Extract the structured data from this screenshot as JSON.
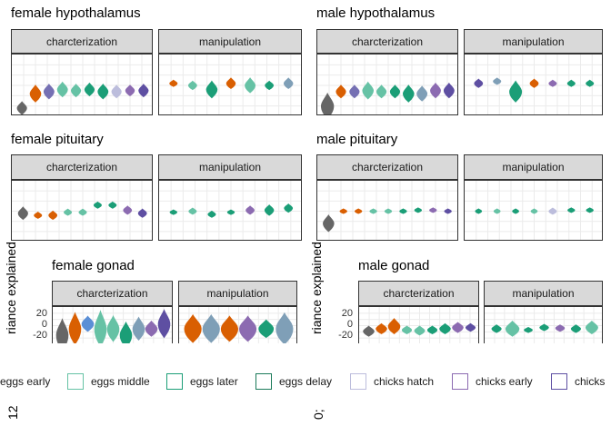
{
  "chart_data": [
    {
      "type": "violin",
      "title": "female hypothalamus",
      "facets": [
        "charcterization",
        "manipulation"
      ],
      "groups": [
        {
          "facet": "charcterization",
          "violins": [
            {
              "center": -22,
              "spread": 6,
              "color": "#666666"
            },
            {
              "center": -8,
              "spread": 8,
              "color": "#d95f02"
            },
            {
              "center": -6,
              "spread": 7,
              "color": "#7570b3"
            },
            {
              "center": -4,
              "spread": 7,
              "color": "#66c2a5"
            },
            {
              "center": -5,
              "spread": 6,
              "color": "#66c2a5"
            },
            {
              "center": -4,
              "spread": 6,
              "color": "#1b9e77"
            },
            {
              "center": -6,
              "spread": 7,
              "color": "#1b9e77"
            },
            {
              "center": -6,
              "spread": 6,
              "color": "#bcbddc"
            },
            {
              "center": -5,
              "spread": 5,
              "color": "#8c6bb1"
            },
            {
              "center": -5,
              "spread": 6,
              "color": "#5e4fa2"
            }
          ]
        },
        {
          "facet": "manipulation",
          "violins": [
            {
              "center": 2,
              "spread": 3,
              "color": "#d95f02"
            },
            {
              "center": 0,
              "spread": 4,
              "color": "#66c2a5"
            },
            {
              "center": -4,
              "spread": 8,
              "color": "#1b9e77"
            },
            {
              "center": 2,
              "spread": 5,
              "color": "#d95f02"
            },
            {
              "center": 0,
              "spread": 7,
              "color": "#66c2a5"
            },
            {
              "center": 0,
              "spread": 4,
              "color": "#1b9e77"
            },
            {
              "center": 2,
              "spread": 5,
              "color": "#7f9fb7"
            }
          ]
        }
      ]
    },
    {
      "type": "violin",
      "title": "male hypothalamus",
      "facets": [
        "charcterization",
        "manipulation"
      ],
      "groups": [
        {
          "facet": "charcterization",
          "violins": [
            {
              "center": -20,
              "spread": 12,
              "color": "#666666"
            },
            {
              "center": -6,
              "spread": 6,
              "color": "#d95f02"
            },
            {
              "center": -6,
              "spread": 6,
              "color": "#7570b3"
            },
            {
              "center": -5,
              "spread": 8,
              "color": "#66c2a5"
            },
            {
              "center": -6,
              "spread": 6,
              "color": "#66c2a5"
            },
            {
              "center": -6,
              "spread": 6,
              "color": "#1b9e77"
            },
            {
              "center": -8,
              "spread": 8,
              "color": "#1b9e77"
            },
            {
              "center": -8,
              "spread": 7,
              "color": "#7f9fb7"
            },
            {
              "center": -5,
              "spread": 7,
              "color": "#8c6bb1"
            },
            {
              "center": -5,
              "spread": 7,
              "color": "#5e4fa2"
            }
          ]
        },
        {
          "facet": "manipulation",
          "violins": [
            {
              "center": 2,
              "spread": 4,
              "color": "#5e4fa2"
            },
            {
              "center": 4,
              "spread": 3,
              "color": "#7f9fb7"
            },
            {
              "center": -6,
              "spread": 10,
              "color": "#1b9e77"
            },
            {
              "center": 2,
              "spread": 4,
              "color": "#d95f02"
            },
            {
              "center": 2,
              "spread": 3,
              "color": "#8c6bb1"
            },
            {
              "center": 2,
              "spread": 3,
              "color": "#1b9e77"
            },
            {
              "center": 2,
              "spread": 3,
              "color": "#1b9e77"
            }
          ]
        }
      ]
    },
    {
      "type": "violin",
      "title": "female pituitary",
      "facets": [
        "charcterization",
        "manipulation"
      ],
      "groups": [
        {
          "facet": "charcterization",
          "violins": [
            {
              "center": -2,
              "spread": 6,
              "color": "#666666"
            },
            {
              "center": -4,
              "spread": 3,
              "color": "#d95f02"
            },
            {
              "center": -4,
              "spread": 4,
              "color": "#d95f02"
            },
            {
              "center": -1,
              "spread": 3,
              "color": "#66c2a5"
            },
            {
              "center": -1,
              "spread": 3,
              "color": "#66c2a5"
            },
            {
              "center": 6,
              "spread": 3,
              "color": "#1b9e77"
            },
            {
              "center": 6,
              "spread": 3,
              "color": "#1b9e77"
            },
            {
              "center": 1,
              "spread": 4,
              "color": "#8c6bb1"
            },
            {
              "center": -2,
              "spread": 4,
              "color": "#5e4fa2"
            }
          ]
        },
        {
          "facet": "manipulation",
          "violins": [
            {
              "center": -1,
              "spread": 2,
              "color": "#1b9e77"
            },
            {
              "center": 0,
              "spread": 3,
              "color": "#66c2a5"
            },
            {
              "center": -3,
              "spread": 3,
              "color": "#1b9e77"
            },
            {
              "center": -1,
              "spread": 2,
              "color": "#1b9e77"
            },
            {
              "center": 1,
              "spread": 4,
              "color": "#8c6bb1"
            },
            {
              "center": 1,
              "spread": 5,
              "color": "#1b9e77"
            },
            {
              "center": 3,
              "spread": 4,
              "color": "#1b9e77"
            }
          ]
        }
      ]
    },
    {
      "type": "violin",
      "title": "male pituitary",
      "facets": [
        "charcterization",
        "manipulation"
      ],
      "groups": [
        {
          "facet": "charcterization",
          "violins": [
            {
              "center": -12,
              "spread": 8,
              "color": "#666666"
            },
            {
              "center": 0,
              "spread": 2,
              "color": "#d95f02"
            },
            {
              "center": 0,
              "spread": 2,
              "color": "#d95f02"
            },
            {
              "center": 0,
              "spread": 2,
              "color": "#66c2a5"
            },
            {
              "center": 0,
              "spread": 2,
              "color": "#66c2a5"
            },
            {
              "center": 0,
              "spread": 2,
              "color": "#1b9e77"
            },
            {
              "center": 1,
              "spread": 2,
              "color": "#1b9e77"
            },
            {
              "center": 1,
              "spread": 2,
              "color": "#8c6bb1"
            },
            {
              "center": 0,
              "spread": 2,
              "color": "#5e4fa2"
            }
          ]
        },
        {
          "facet": "manipulation",
          "violins": [
            {
              "center": 0,
              "spread": 1,
              "color": "#1b9e77"
            },
            {
              "center": 0,
              "spread": 1,
              "color": "#66c2a5"
            },
            {
              "center": 0,
              "spread": 1,
              "color": "#1b9e77"
            },
            {
              "center": 0,
              "spread": 1,
              "color": "#66c2a5"
            },
            {
              "center": 0,
              "spread": 3,
              "color": "#bcbddc"
            },
            {
              "center": 1,
              "spread": 2,
              "color": "#1b9e77"
            },
            {
              "center": 1,
              "spread": 2,
              "color": "#1b9e77"
            }
          ]
        }
      ]
    },
    {
      "type": "violin",
      "title": "female gonad",
      "facets": [
        "charcterization",
        "manipulation"
      ],
      "ylabel": "riance explained",
      "yticks": [
        "20",
        "0",
        "-20"
      ],
      "ylim": [
        -25,
        35
      ],
      "groups": [
        {
          "facet": "charcterization",
          "violins": [
            {
              "center": -10,
              "spread": 25,
              "color": "#666666"
            },
            {
              "center": 0,
              "spread": 25,
              "color": "#d95f02"
            },
            {
              "center": 8,
              "spread": 12,
              "color": "#5b8fd6"
            },
            {
              "center": 0,
              "spread": 28,
              "color": "#66c2a5"
            },
            {
              "center": 0,
              "spread": 20,
              "color": "#66c2a5"
            },
            {
              "center": -10,
              "spread": 20,
              "color": "#1b9e77"
            },
            {
              "center": 0,
              "spread": 18,
              "color": "#7f9fb7"
            },
            {
              "center": 0,
              "spread": 12,
              "color": "#8c6bb1"
            },
            {
              "center": 8,
              "spread": 22,
              "color": "#5e4fa2"
            }
          ]
        },
        {
          "facet": "manipulation",
          "violins": [
            {
              "center": 0,
              "spread": 22,
              "color": "#d95f02"
            },
            {
              "center": 0,
              "spread": 22,
              "color": "#7f9fb7"
            },
            {
              "center": 0,
              "spread": 20,
              "color": "#d95f02"
            },
            {
              "center": 0,
              "spread": 20,
              "color": "#8c6bb1"
            },
            {
              "center": 0,
              "spread": 14,
              "color": "#1b9e77"
            },
            {
              "center": 0,
              "spread": 25,
              "color": "#7f9fb7"
            }
          ]
        }
      ]
    },
    {
      "type": "violin",
      "title": "male gonad",
      "facets": [
        "charcterization",
        "manipulation"
      ],
      "ylabel": "riance explained",
      "yticks": [
        "20",
        "0",
        "-20"
      ],
      "ylim": [
        -25,
        35
      ],
      "groups": [
        {
          "facet": "charcterization",
          "violins": [
            {
              "center": -4,
              "spread": 8,
              "color": "#666666"
            },
            {
              "center": 0,
              "spread": 8,
              "color": "#d95f02"
            },
            {
              "center": 4,
              "spread": 12,
              "color": "#d95f02"
            },
            {
              "center": -2,
              "spread": 6,
              "color": "#66c2a5"
            },
            {
              "center": -3,
              "spread": 7,
              "color": "#66c2a5"
            },
            {
              "center": -2,
              "spread": 6,
              "color": "#1b9e77"
            },
            {
              "center": 0,
              "spread": 8,
              "color": "#1b9e77"
            },
            {
              "center": 2,
              "spread": 8,
              "color": "#8c6bb1"
            },
            {
              "center": 2,
              "spread": 6,
              "color": "#5e4fa2"
            }
          ]
        },
        {
          "facet": "manipulation",
          "violins": [
            {
              "center": 0,
              "spread": 6,
              "color": "#1b9e77"
            },
            {
              "center": 0,
              "spread": 12,
              "color": "#66c2a5"
            },
            {
              "center": -2,
              "spread": 4,
              "color": "#1b9e77"
            },
            {
              "center": 2,
              "spread": 5,
              "color": "#1b9e77"
            },
            {
              "center": 1,
              "spread": 5,
              "color": "#8c6bb1"
            },
            {
              "center": 0,
              "spread": 6,
              "color": "#1b9e77"
            },
            {
              "center": 2,
              "spread": 10,
              "color": "#66c2a5"
            }
          ]
        }
      ]
    }
  ],
  "legend": [
    {
      "label": "eggs early",
      "color": "#66c2a5",
      "show_key": false
    },
    {
      "label": "eggs middle",
      "color": "#66c2a5",
      "show_key": true
    },
    {
      "label": "eggs later",
      "color": "#1b9e77",
      "show_key": true
    },
    {
      "label": "eggs delay",
      "color": "#1b7a5a",
      "show_key": true
    },
    {
      "label": "chicks hatch",
      "color": "#bcbddc",
      "show_key": true
    },
    {
      "label": "chicks early",
      "color": "#8c6bb1",
      "show_key": true
    },
    {
      "label": "chicks",
      "color": "#5e4fa2",
      "show_key": true
    }
  ],
  "fragments": {
    "left": "12",
    "mid": "0;"
  }
}
